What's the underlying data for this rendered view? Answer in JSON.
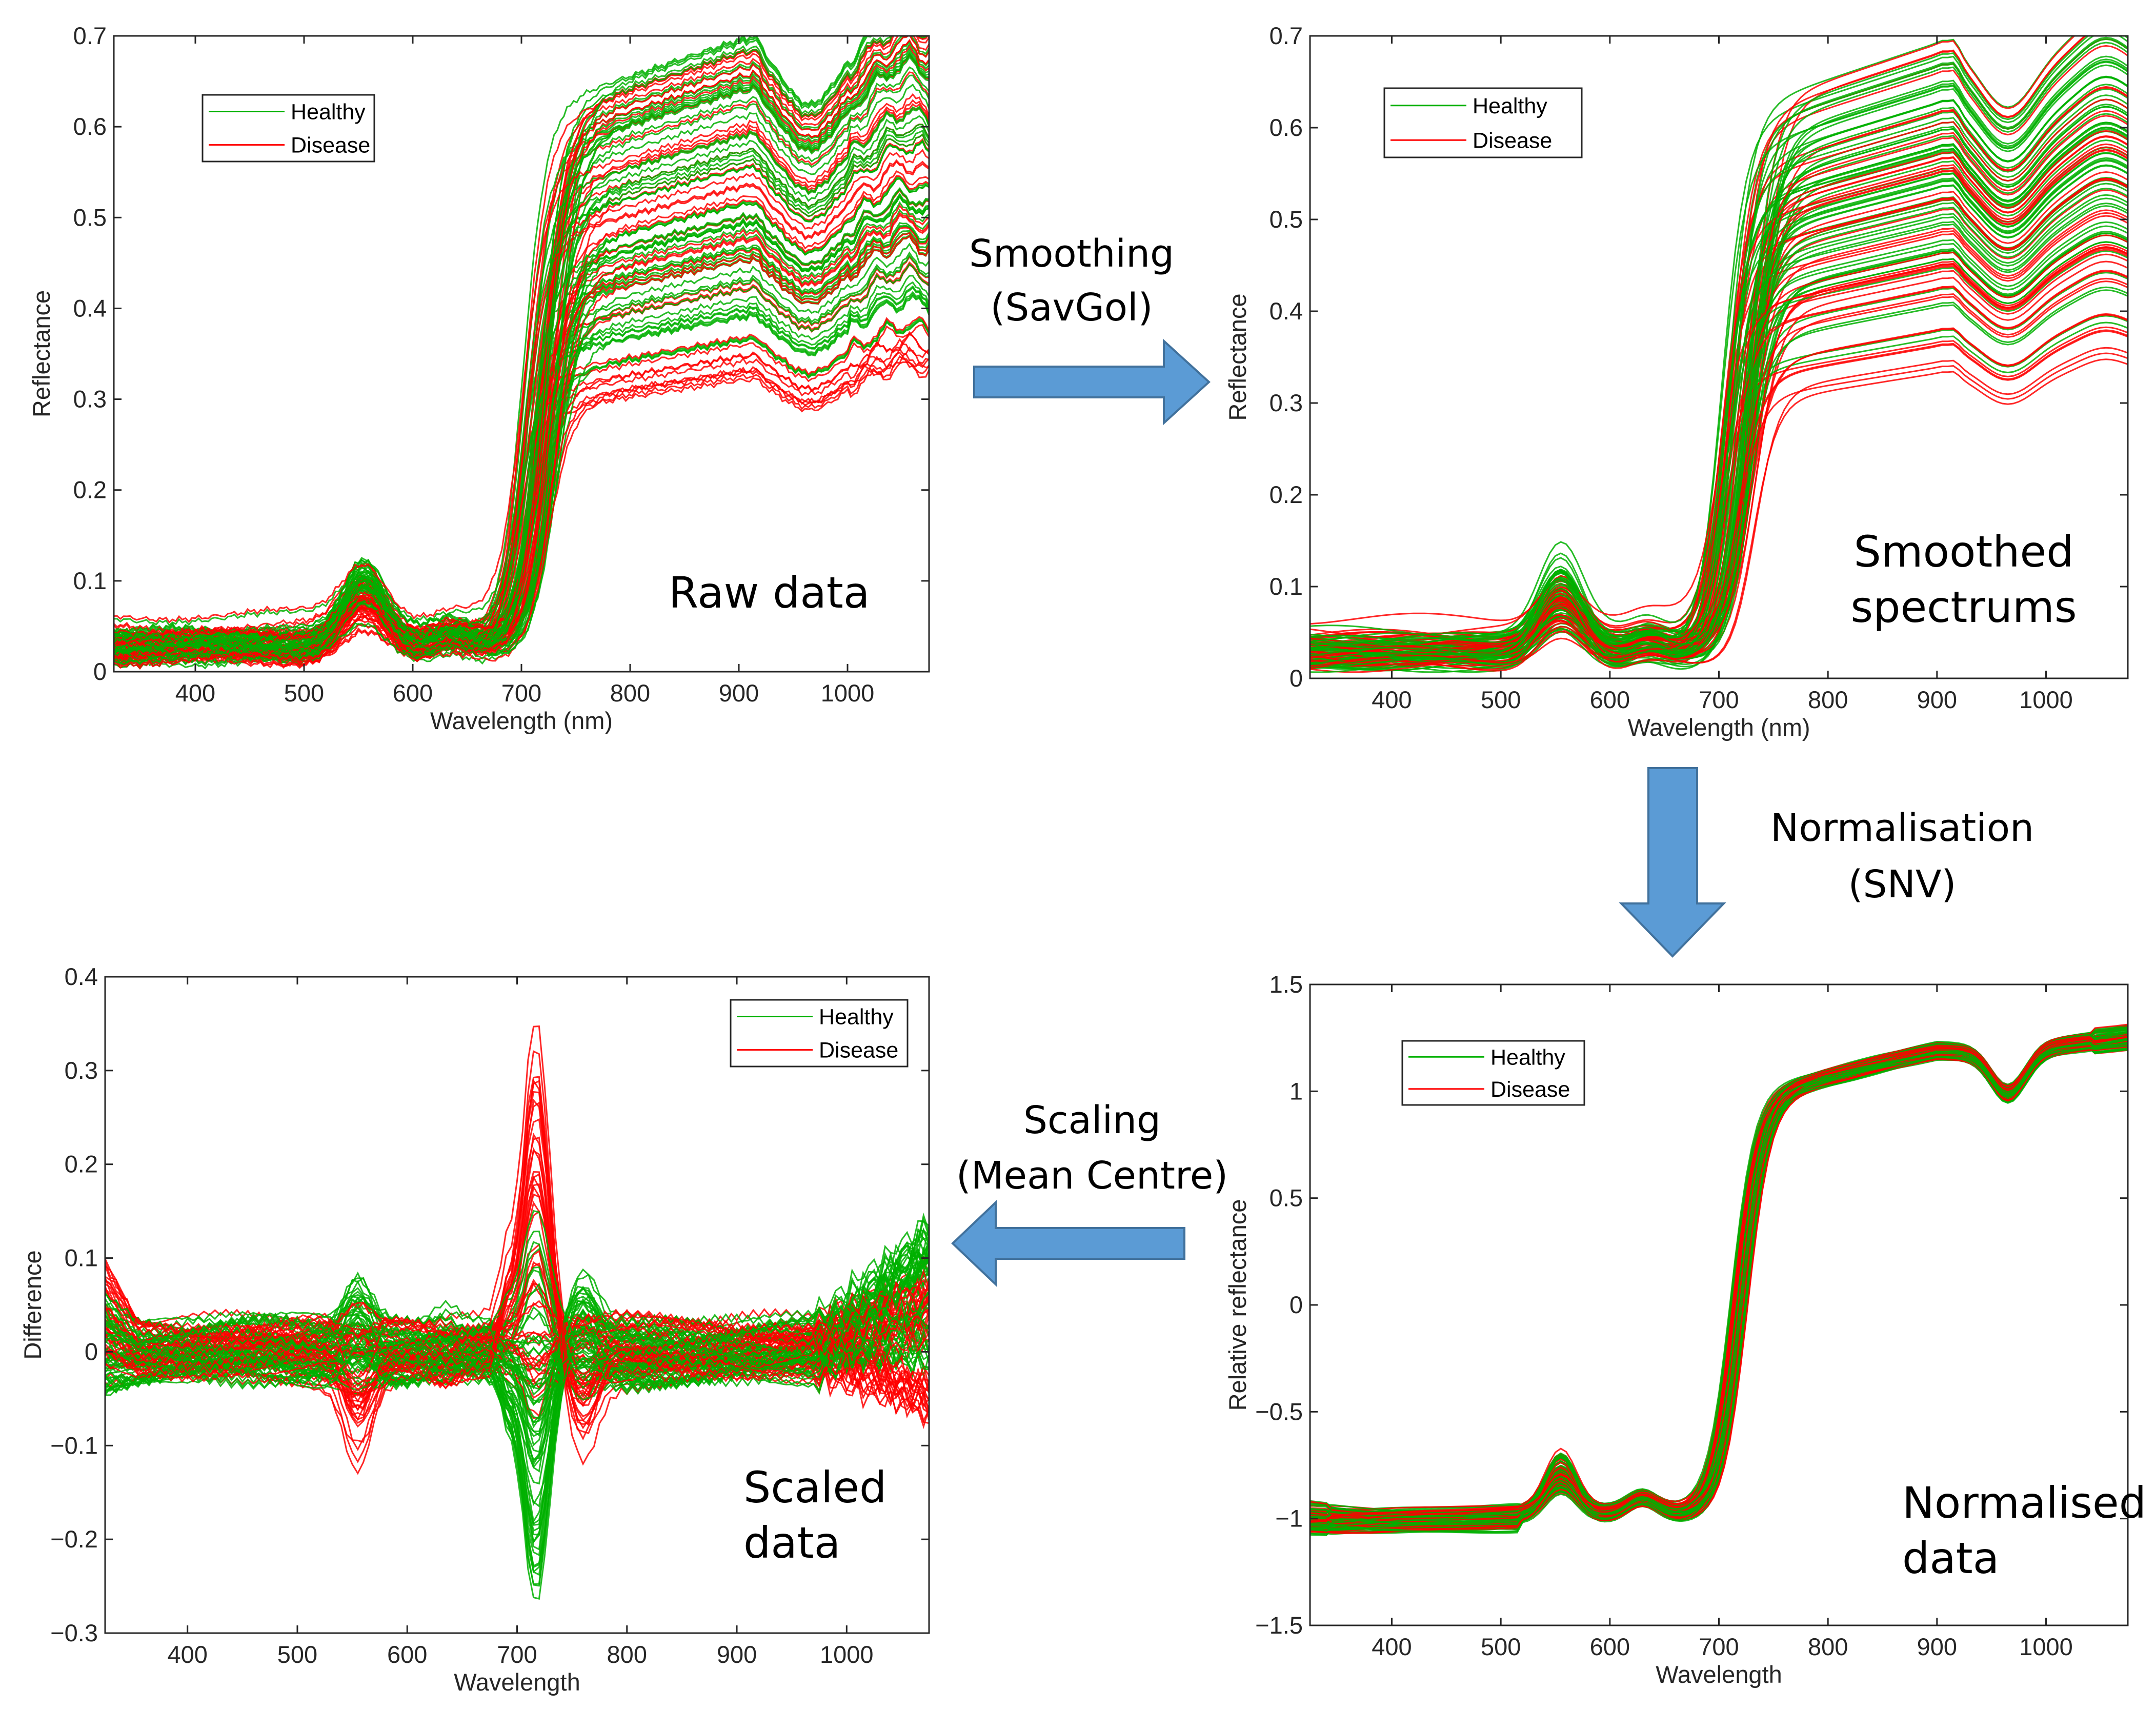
{
  "colors": {
    "healthy": "#00b000",
    "disease": "#ff0000",
    "arrow_fill": "#5b9bd5",
    "arrow_stroke": "#41719c"
  },
  "legend_labels": {
    "healthy": "Healthy",
    "disease": "Disease"
  },
  "chart_data": [
    {
      "id": "raw",
      "type": "line",
      "title": "",
      "annotation": [
        "Raw data"
      ],
      "xlabel": "Wavelength (nm)",
      "ylabel": "Reflectance",
      "xlim": [
        325,
        1075
      ],
      "ylim": [
        0,
        0.7
      ],
      "xticks": [
        400,
        500,
        600,
        700,
        800,
        900,
        1000
      ],
      "yticks": [
        0,
        0.1,
        0.2,
        0.3,
        0.4,
        0.5,
        0.6,
        0.7
      ],
      "ytick_labels": [
        "0",
        "0.1",
        "0.2",
        "0.3",
        "0.4",
        "0.5",
        "0.6",
        "0.7"
      ],
      "legend": [
        "Healthy",
        "Disease"
      ],
      "legend_position": "top-left",
      "series_groups": [
        {
          "name": "Healthy",
          "color": "#00b000",
          "count": 60
        },
        {
          "name": "Disease",
          "color": "#ff0000",
          "count": 45
        }
      ],
      "profile": {
        "x": [
          325,
          400,
          500,
          520,
          555,
          590,
          640,
          680,
          700,
          720,
          750,
          800,
          900,
          920,
          960,
          1000,
          1050,
          1075
        ],
        "base_range": [
          0.3,
          0.65
        ],
        "visible_offset_range": [
          0.01,
          0.06
        ],
        "green_peak_range": [
          0.045,
          0.11
        ]
      }
    },
    {
      "id": "smoothed",
      "type": "line",
      "title": "",
      "annotation": [
        "Smoothed",
        "spectrums"
      ],
      "xlabel": "Wavelength (nm)",
      "ylabel": "Reflectance",
      "xlim": [
        325,
        1075
      ],
      "ylim": [
        0,
        0.7
      ],
      "xticks": [
        400,
        500,
        600,
        700,
        800,
        900,
        1000
      ],
      "yticks": [
        0,
        0.1,
        0.2,
        0.3,
        0.4,
        0.5,
        0.6,
        0.7
      ],
      "ytick_labels": [
        "0",
        "0.1",
        "0.2",
        "0.3",
        "0.4",
        "0.5",
        "0.6",
        "0.7"
      ],
      "legend": [
        "Healthy",
        "Disease"
      ],
      "legend_position": "top-left",
      "series_groups": [
        {
          "name": "Healthy",
          "color": "#00b000",
          "count": 60
        },
        {
          "name": "Disease",
          "color": "#ff0000",
          "count": 45
        }
      ]
    },
    {
      "id": "normalised",
      "type": "line",
      "title": "",
      "annotation": [
        "Normalised",
        "data"
      ],
      "xlabel": "Wavelength",
      "ylabel": "Relative reflectance",
      "xlim": [
        325,
        1075
      ],
      "ylim": [
        -1.5,
        1.5
      ],
      "xticks": [
        400,
        500,
        600,
        700,
        800,
        900,
        1000
      ],
      "yticks": [
        -1.5,
        -1,
        -0.5,
        0,
        0.5,
        1,
        1.5
      ],
      "ytick_labels": [
        "−1.5",
        "−1",
        "−0.5",
        "0",
        "0.5",
        "1",
        "1.5"
      ],
      "legend": [
        "Healthy",
        "Disease"
      ],
      "legend_position": "top-left",
      "series_groups": [
        {
          "name": "Healthy",
          "color": "#00b000",
          "count": 60
        },
        {
          "name": "Disease",
          "color": "#ff0000",
          "count": 45
        }
      ]
    },
    {
      "id": "scaled",
      "type": "line",
      "title": "",
      "annotation": [
        "Scaled",
        "data"
      ],
      "xlabel": "Wavelength",
      "ylabel": "Difference",
      "xlim": [
        325,
        1075
      ],
      "ylim": [
        -0.3,
        0.4
      ],
      "xticks": [
        400,
        500,
        600,
        700,
        800,
        900,
        1000
      ],
      "yticks": [
        -0.3,
        -0.2,
        -0.1,
        0,
        0.1,
        0.2,
        0.3,
        0.4
      ],
      "ytick_labels": [
        "−0.3",
        "−0.2",
        "−0.1",
        "0",
        "0.1",
        "0.2",
        "0.3",
        "0.4"
      ],
      "legend": [
        "Healthy",
        "Disease"
      ],
      "legend_position": "top-right",
      "series_groups": [
        {
          "name": "Healthy",
          "color": "#00b000",
          "count": 60
        },
        {
          "name": "Disease",
          "color": "#ff0000",
          "count": 45
        }
      ]
    }
  ],
  "flow_steps": [
    {
      "id": "smoothing",
      "lines": [
        "Smoothing",
        "(SavGol)"
      ],
      "direction": "right"
    },
    {
      "id": "normalisation",
      "lines": [
        "Normalisation",
        "(SNV)"
      ],
      "direction": "down"
    },
    {
      "id": "scaling",
      "lines": [
        "Scaling",
        "(Mean Centre)"
      ],
      "direction": "left"
    }
  ]
}
